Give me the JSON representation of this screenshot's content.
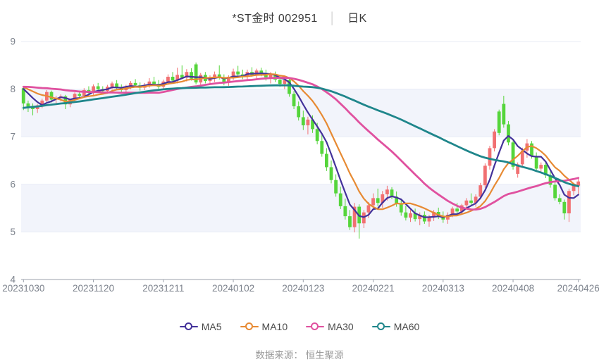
{
  "title": {
    "symbol": "*ST金时 002951",
    "separator": "│",
    "period": "日K"
  },
  "footer": {
    "source": "数据来源： 恒生聚源"
  },
  "chart_data": {
    "type": "candlestick",
    "title": "*ST金时 002951 日K",
    "y_axis": {
      "min": 4,
      "max": 9,
      "ticks": [
        9,
        8,
        7,
        6,
        5,
        4
      ]
    },
    "x_axis": {
      "ticks": [
        {
          "i": 0,
          "label": "20231030"
        },
        {
          "i": 15,
          "label": "20231120"
        },
        {
          "i": 30,
          "label": "20231211"
        },
        {
          "i": 45,
          "label": "20240102"
        },
        {
          "i": 60,
          "label": "20240123"
        },
        {
          "i": 75,
          "label": "20240221"
        },
        {
          "i": 90,
          "label": "20240313"
        },
        {
          "i": 105,
          "label": "20240408"
        },
        {
          "i": 119,
          "label": "20240426"
        }
      ]
    },
    "style": {
      "up_color": "#f17072",
      "down_color": "#55d53b",
      "band_fill": "#f2f4fb",
      "grid_color": "#e7ebf6",
      "axis_color": "#9ba1ab",
      "label_color": "#7c828c",
      "band_rows": [
        [
          8,
          7
        ],
        [
          6,
          5
        ]
      ]
    },
    "candles_ohlc": [
      [
        8.02,
        8.06,
        7.56,
        7.7
      ],
      [
        7.7,
        7.76,
        7.52,
        7.62
      ],
      [
        7.62,
        7.7,
        7.45,
        7.58
      ],
      [
        7.58,
        7.68,
        7.5,
        7.66
      ],
      [
        7.66,
        7.8,
        7.6,
        7.76
      ],
      [
        7.76,
        7.98,
        7.7,
        7.94
      ],
      [
        7.94,
        7.97,
        7.72,
        7.78
      ],
      [
        7.78,
        7.86,
        7.68,
        7.82
      ],
      [
        7.82,
        7.89,
        7.74,
        7.85
      ],
      [
        7.85,
        7.88,
        7.58,
        7.68
      ],
      [
        7.68,
        7.8,
        7.62,
        7.78
      ],
      [
        7.78,
        7.93,
        7.74,
        7.9
      ],
      [
        7.9,
        7.97,
        7.8,
        7.86
      ],
      [
        7.86,
        8.02,
        7.82,
        7.98
      ],
      [
        7.98,
        8.06,
        7.88,
        7.92
      ],
      [
        7.92,
        8.1,
        7.88,
        8.06
      ],
      [
        8.06,
        8.13,
        7.95,
        8.0
      ],
      [
        8.0,
        8.06,
        7.9,
        7.96
      ],
      [
        7.96,
        8.09,
        7.92,
        8.05
      ],
      [
        8.05,
        8.16,
        7.99,
        8.12
      ],
      [
        8.12,
        8.19,
        8.0,
        8.04
      ],
      [
        8.04,
        8.1,
        7.92,
        7.98
      ],
      [
        7.98,
        8.09,
        7.94,
        8.06
      ],
      [
        8.06,
        8.17,
        8.0,
        8.13
      ],
      [
        8.13,
        8.21,
        8.04,
        8.08
      ],
      [
        8.08,
        8.14,
        7.97,
        8.03
      ],
      [
        8.03,
        8.13,
        7.98,
        8.09
      ],
      [
        8.09,
        8.23,
        8.03,
        8.16
      ],
      [
        8.16,
        8.26,
        8.08,
        8.11
      ],
      [
        8.11,
        8.19,
        8.01,
        8.05
      ],
      [
        8.05,
        8.2,
        8.0,
        8.16
      ],
      [
        8.16,
        8.31,
        8.09,
        8.26
      ],
      [
        8.26,
        8.36,
        8.12,
        8.18
      ],
      [
        8.18,
        8.45,
        8.12,
        8.3
      ],
      [
        8.3,
        8.5,
        8.21,
        8.24
      ],
      [
        8.24,
        8.42,
        8.16,
        8.36
      ],
      [
        8.36,
        8.44,
        8.18,
        8.22
      ],
      [
        8.52,
        8.56,
        8.1,
        8.14
      ],
      [
        8.14,
        8.34,
        8.08,
        8.3
      ],
      [
        8.3,
        8.36,
        8.12,
        8.17
      ],
      [
        8.17,
        8.29,
        8.09,
        8.24
      ],
      [
        8.24,
        8.37,
        8.15,
        8.31
      ],
      [
        8.31,
        8.5,
        8.2,
        8.24
      ],
      [
        8.24,
        8.31,
        8.08,
        8.15
      ],
      [
        8.15,
        8.29,
        8.07,
        8.26
      ],
      [
        8.26,
        8.43,
        8.19,
        8.37
      ],
      [
        8.37,
        8.49,
        8.26,
        8.31
      ],
      [
        8.31,
        8.41,
        8.21,
        8.28
      ],
      [
        8.28,
        8.41,
        8.2,
        8.36
      ],
      [
        8.36,
        8.46,
        8.26,
        8.3
      ],
      [
        8.3,
        8.43,
        8.22,
        8.39
      ],
      [
        8.39,
        8.45,
        8.27,
        8.33
      ],
      [
        8.33,
        8.41,
        8.18,
        8.25
      ],
      [
        8.25,
        8.36,
        8.12,
        8.31
      ],
      [
        8.31,
        8.37,
        8.15,
        8.2
      ],
      [
        8.2,
        8.3,
        8.05,
        8.11
      ],
      [
        8.11,
        8.25,
        8.0,
        8.19
      ],
      [
        8.19,
        8.22,
        7.84,
        7.9
      ],
      [
        7.9,
        7.96,
        7.58,
        7.64
      ],
      [
        7.64,
        7.74,
        7.34,
        7.41
      ],
      [
        7.41,
        7.55,
        7.14,
        7.24
      ],
      [
        7.24,
        7.42,
        7.05,
        7.36
      ],
      [
        7.36,
        7.45,
        7.08,
        7.16
      ],
      [
        7.16,
        7.29,
        6.84,
        6.91
      ],
      [
        6.91,
        7.04,
        6.58,
        6.64
      ],
      [
        6.64,
        6.76,
        6.28,
        6.36
      ],
      [
        6.36,
        6.5,
        6.02,
        6.09
      ],
      [
        6.09,
        6.21,
        5.74,
        5.81
      ],
      [
        5.81,
        5.95,
        5.48,
        5.54
      ],
      [
        5.54,
        5.7,
        5.26,
        5.33
      ],
      [
        5.33,
        5.46,
        5.04,
        5.1
      ],
      [
        5.1,
        5.61,
        4.99,
        5.53
      ],
      [
        5.53,
        5.58,
        4.86,
        5.18
      ],
      [
        5.18,
        5.46,
        5.08,
        5.41
      ],
      [
        5.41,
        5.63,
        5.29,
        5.56
      ],
      [
        5.56,
        5.81,
        5.46,
        5.71
      ],
      [
        5.71,
        5.91,
        5.54,
        5.61
      ],
      [
        5.61,
        5.86,
        5.51,
        5.79
      ],
      [
        5.79,
        5.97,
        5.66,
        5.89
      ],
      [
        5.89,
        5.94,
        5.69,
        5.74
      ],
      [
        5.74,
        5.85,
        5.53,
        5.59
      ],
      [
        5.59,
        5.7,
        5.34,
        5.41
      ],
      [
        5.41,
        5.55,
        5.24,
        5.3
      ],
      [
        5.3,
        5.46,
        5.21,
        5.39
      ],
      [
        5.39,
        5.49,
        5.22,
        5.27
      ],
      [
        5.27,
        5.41,
        5.14,
        5.36
      ],
      [
        5.36,
        5.43,
        5.17,
        5.22
      ],
      [
        5.22,
        5.36,
        5.11,
        5.31
      ],
      [
        5.31,
        5.46,
        5.23,
        5.42
      ],
      [
        5.42,
        5.51,
        5.27,
        5.33
      ],
      [
        5.33,
        5.43,
        5.19,
        5.26
      ],
      [
        5.26,
        5.41,
        5.17,
        5.36
      ],
      [
        5.36,
        5.53,
        5.31,
        5.49
      ],
      [
        5.49,
        5.61,
        5.37,
        5.43
      ],
      [
        5.43,
        5.59,
        5.36,
        5.56
      ],
      [
        5.56,
        5.71,
        5.49,
        5.66
      ],
      [
        5.66,
        5.81,
        5.56,
        5.61
      ],
      [
        5.61,
        5.79,
        5.53,
        5.74
      ],
      [
        5.74,
        6.03,
        5.68,
        5.98
      ],
      [
        5.98,
        6.44,
        5.93,
        6.39
      ],
      [
        6.39,
        6.81,
        6.31,
        6.76
      ],
      [
        6.76,
        7.16,
        6.69,
        7.11
      ],
      [
        7.53,
        7.57,
        7.03,
        7.08
      ],
      [
        7.69,
        7.86,
        7.19,
        7.26
      ],
      [
        7.26,
        7.33,
        6.82,
        6.88
      ],
      [
        6.88,
        6.94,
        6.31,
        6.37
      ],
      [
        6.22,
        6.46,
        6.14,
        6.42
      ],
      [
        6.42,
        6.77,
        6.35,
        6.71
      ],
      [
        6.71,
        6.95,
        6.56,
        6.86
      ],
      [
        6.86,
        6.91,
        6.54,
        6.59
      ],
      [
        6.59,
        6.67,
        6.27,
        6.33
      ],
      [
        6.33,
        6.46,
        6.24,
        6.41
      ],
      [
        6.41,
        6.48,
        6.13,
        6.19
      ],
      [
        6.19,
        6.27,
        5.93,
        5.99
      ],
      [
        5.99,
        6.04,
        5.66,
        5.71
      ],
      [
        5.71,
        5.79,
        5.58,
        5.63
      ],
      [
        5.63,
        5.68,
        5.26,
        5.39
      ],
      [
        5.39,
        5.91,
        5.21,
        5.86
      ],
      [
        5.86,
        6.03,
        5.77,
        5.97
      ],
      [
        5.97,
        6.12,
        5.8,
        6.06
      ]
    ],
    "ma_series": [
      {
        "name": "MA5",
        "window": 5,
        "color": "#43329a",
        "width": 2.2
      },
      {
        "name": "MA10",
        "window": 10,
        "color": "#e78a33",
        "width": 2.2
      },
      {
        "name": "MA30",
        "window": 30,
        "color": "#e0519f",
        "width": 2.8
      },
      {
        "name": "MA60",
        "window": 60,
        "color": "#1f868b",
        "width": 2.8
      }
    ],
    "ma_seed_closes": [
      6.95,
      7.02,
      6.98,
      7.05,
      7.1,
      7.04,
      7.08,
      7.15,
      7.1,
      7.18,
      7.12,
      7.2,
      7.15,
      7.08,
      7.14,
      7.1,
      7.16,
      7.22,
      7.18,
      7.25,
      7.2,
      7.14,
      7.19,
      7.12,
      7.08,
      7.15,
      7.2,
      7.26,
      7.32,
      7.4,
      7.55,
      7.68,
      7.8,
      7.92,
      8.0,
      8.06,
      8.1,
      8.04,
      8.08,
      8.14,
      8.09,
      8.13,
      8.17,
      8.1,
      8.06,
      8.12,
      8.08,
      8.15,
      8.11,
      8.07,
      8.12,
      8.09,
      8.05,
      8.11,
      8.07,
      8.12,
      8.09,
      8.06,
      8.1,
      8.07
    ]
  }
}
